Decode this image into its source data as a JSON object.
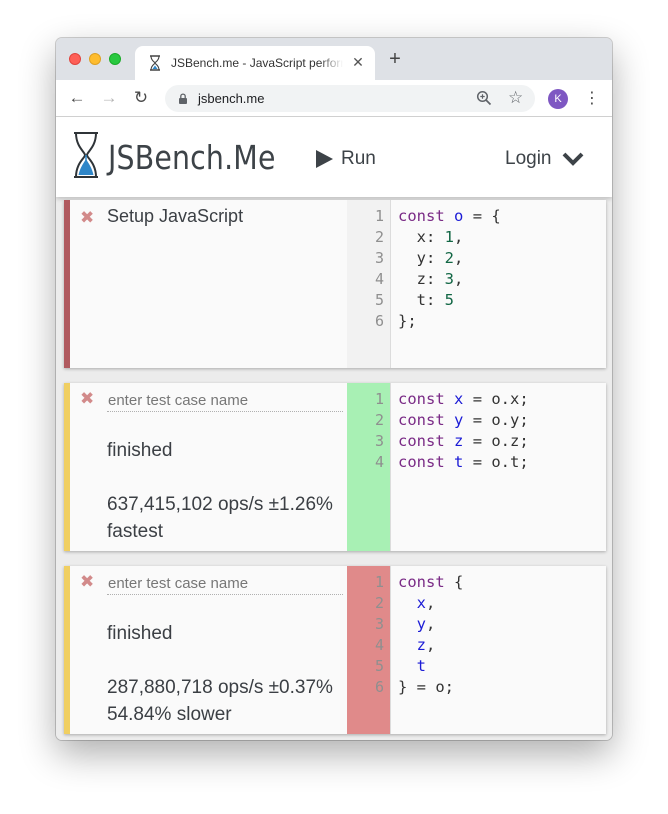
{
  "browser": {
    "tab_title": "JSBench.me - JavaScript performance benchmarking playground",
    "tab_close": "✕",
    "new_tab": "+",
    "url": "jsbench.me",
    "profile_initial": "K",
    "icons": [
      "back-arrow-icon",
      "forward-arrow-icon",
      "reload-icon",
      "lock-icon",
      "zoom-icon",
      "star-icon",
      "kebab-menu-icon"
    ]
  },
  "site": {
    "logo_text": "JSBench.Me",
    "run_label": "Run",
    "login_label": "Login"
  },
  "setup": {
    "title": "Setup JavaScript",
    "accent_color": "#b05a5f",
    "line_numbers": [
      "1",
      "2",
      "3",
      "4",
      "5",
      "6"
    ],
    "code": [
      [
        {
          "t": "const",
          "c": "kw"
        },
        {
          "t": " "
        },
        {
          "t": "o",
          "c": "var"
        },
        {
          "t": " = {"
        }
      ],
      [
        {
          "t": "  x: "
        },
        {
          "t": "1",
          "c": "num"
        },
        {
          "t": ","
        }
      ],
      [
        {
          "t": "  y: "
        },
        {
          "t": "2",
          "c": "num"
        },
        {
          "t": ","
        }
      ],
      [
        {
          "t": "  z: "
        },
        {
          "t": "3",
          "c": "num"
        },
        {
          "t": ","
        }
      ],
      [
        {
          "t": "  t: "
        },
        {
          "t": "5",
          "c": "num"
        }
      ],
      [
        {
          "t": "};"
        }
      ]
    ]
  },
  "cases": [
    {
      "name_placeholder": "enter test case name",
      "name_value": "",
      "status": "finished",
      "ops": "637,415,102 ops/s ±1.26%",
      "verdict": "fastest",
      "accent_color": "#f0cf62",
      "gutter_color": "#a8f0b4",
      "line_numbers": [
        "1",
        "2",
        "3",
        "4"
      ],
      "code": [
        [
          {
            "t": "const",
            "c": "kw"
          },
          {
            "t": " "
          },
          {
            "t": "x",
            "c": "var"
          },
          {
            "t": " = o.x;"
          }
        ],
        [
          {
            "t": "const",
            "c": "kw"
          },
          {
            "t": " "
          },
          {
            "t": "y",
            "c": "var"
          },
          {
            "t": " = o.y;"
          }
        ],
        [
          {
            "t": "const",
            "c": "kw"
          },
          {
            "t": " "
          },
          {
            "t": "z",
            "c": "var"
          },
          {
            "t": " = o.z;"
          }
        ],
        [
          {
            "t": "const",
            "c": "kw"
          },
          {
            "t": " "
          },
          {
            "t": "t",
            "c": "var"
          },
          {
            "t": " = o.t;"
          }
        ]
      ]
    },
    {
      "name_placeholder": "enter test case name",
      "name_value": "",
      "status": "finished",
      "ops": "287,880,718 ops/s ±0.37%",
      "verdict": "54.84% slower",
      "accent_color": "#f0cf62",
      "gutter_color": "#e08a8a",
      "line_numbers": [
        "1",
        "2",
        "3",
        "4",
        "5",
        "6"
      ],
      "code": [
        [
          {
            "t": "const",
            "c": "kw"
          },
          {
            "t": " {"
          }
        ],
        [
          {
            "t": "  "
          },
          {
            "t": "x",
            "c": "var"
          },
          {
            "t": ","
          }
        ],
        [
          {
            "t": "  "
          },
          {
            "t": "y",
            "c": "var"
          },
          {
            "t": ","
          }
        ],
        [
          {
            "t": "  "
          },
          {
            "t": "z",
            "c": "var"
          },
          {
            "t": ","
          }
        ],
        [
          {
            "t": "  "
          },
          {
            "t": "t",
            "c": "var"
          }
        ],
        [
          {
            "t": "} = o;"
          }
        ]
      ]
    }
  ]
}
